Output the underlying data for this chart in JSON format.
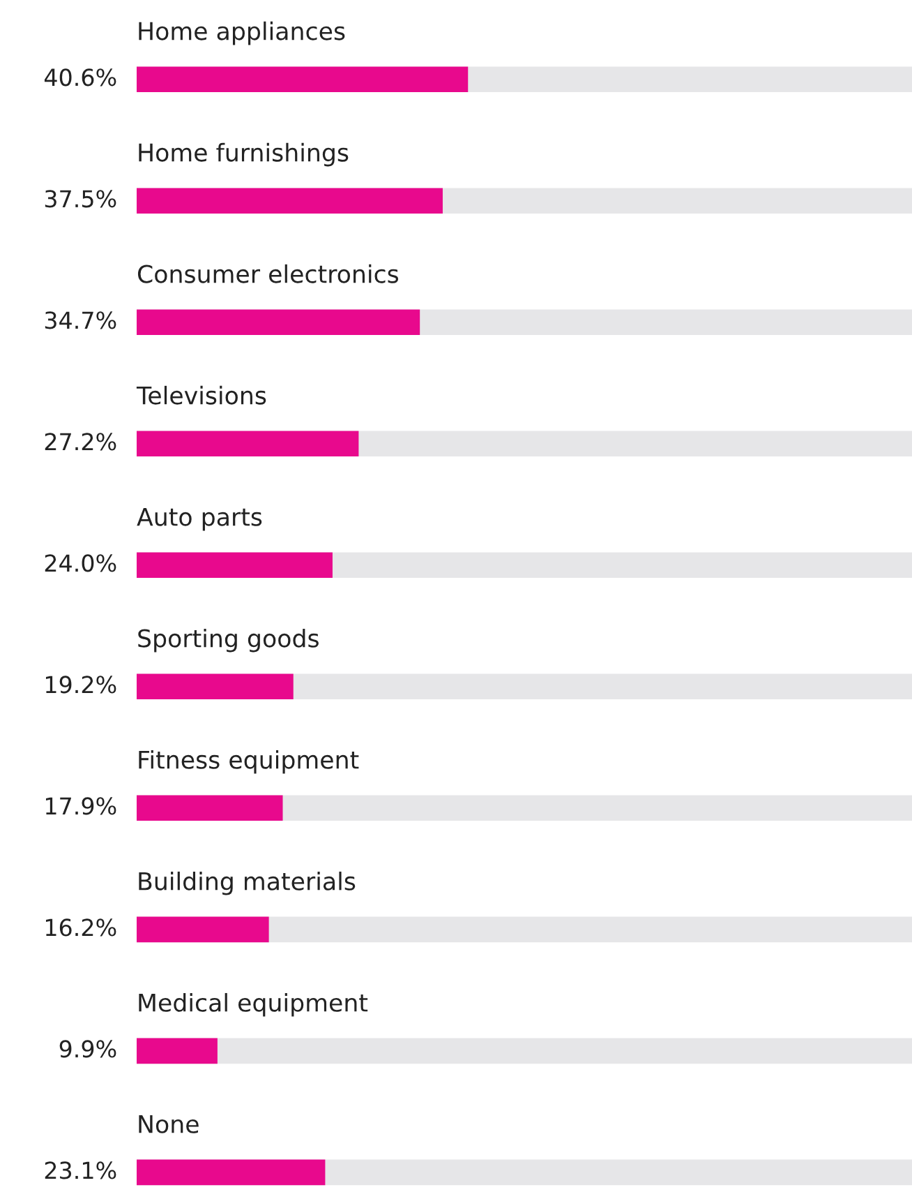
{
  "chart_data": {
    "type": "bar",
    "orientation": "horizontal",
    "categories": [
      "Home appliances",
      "Home furnishings",
      "Consumer electronics",
      "Televisions",
      "Auto parts",
      "Sporting goods",
      "Fitness equipment",
      "Building materials",
      "Medical equipment",
      "None"
    ],
    "values": [
      40.6,
      37.5,
      34.7,
      27.2,
      24.0,
      19.2,
      17.9,
      16.2,
      9.9,
      23.1
    ],
    "value_labels": [
      "40.6%",
      "37.5%",
      "34.7%",
      "27.2%",
      "24.0%",
      "19.2%",
      "17.9%",
      "16.2%",
      "9.9%",
      "23.1%"
    ],
    "color": "#e8098d",
    "xlim": [
      0,
      95
    ],
    "tick_labels": false
  }
}
